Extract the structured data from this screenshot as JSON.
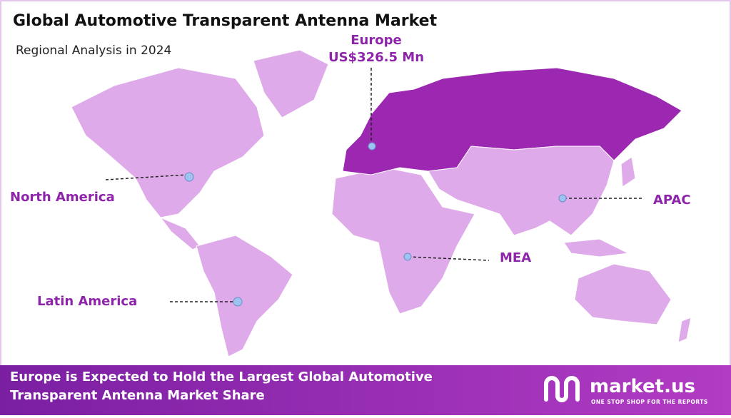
{
  "header": {
    "title": "Global Automotive Transparent Antenna Market",
    "subtitle": "Regional Analysis in 2024"
  },
  "regions": [
    {
      "label": "Europe",
      "value": "US$326.5 Mn"
    },
    {
      "label": "North America"
    },
    {
      "label": "APAC"
    },
    {
      "label": "MEA"
    },
    {
      "label": "Latin America"
    }
  ],
  "footer": {
    "text": "Europe is Expected to Hold the Largest Global Automotive Transparent Antenna Market Share",
    "logo": "market.us",
    "tagline": "ONE STOP SHOP FOR THE REPORTS"
  }
}
